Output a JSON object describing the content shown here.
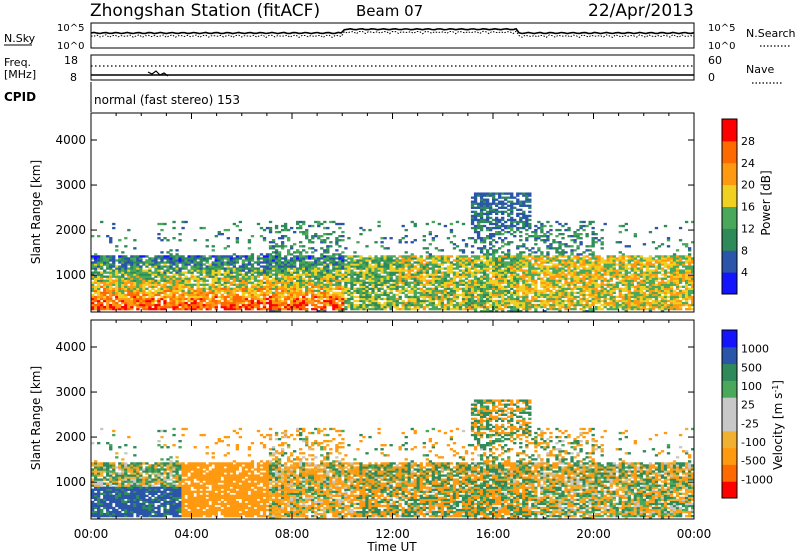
{
  "header": {
    "station": "Zhongshan Station (fitACF)",
    "beam": "Beam 07",
    "date": "22/Apr/2013"
  },
  "top_panels": {
    "nsky_label": "N.Sky",
    "nsky_ticks": [
      "10^5",
      "10^0"
    ],
    "nsearch_label": "N.Search",
    "nsearch_ticks": [
      "10^5",
      "10^0"
    ],
    "freq_label_1": "Freq.",
    "freq_label_2": "[MHz]",
    "freq_ticks": [
      "18",
      "8"
    ],
    "nave_label": "Nave",
    "nave_ticks": [
      "60",
      "0"
    ],
    "cpid_label": "CPID",
    "cpid_text": "normal (fast stereo) 153"
  },
  "colors": {
    "power_scale": [
      "#1414ff",
      "#2a55a8",
      "#2f8a5a",
      "#4aa85a",
      "#f0d020",
      "#ff9a10",
      "#ff6a00",
      "#ff0000"
    ],
    "velocity_scale": [
      "#ff0000",
      "#ff6a00",
      "#ff9a10",
      "#f0b030",
      "#c8c8c8",
      "#c8c8c8",
      "#4aa85a",
      "#2f8a5a",
      "#2a55a8",
      "#1414ff"
    ]
  },
  "chart_data": [
    {
      "type": "heatmap",
      "name": "power",
      "ylabel": "Slant Range [km]",
      "xlabel": "Time UT",
      "x_ticks": [
        "00:00",
        "04:00",
        "08:00",
        "12:00",
        "16:00",
        "20:00",
        "00:00"
      ],
      "y_ticks": [
        1000,
        2000,
        3000,
        4000
      ],
      "ylim": [
        180,
        4600
      ],
      "xlim_hours": [
        0,
        24
      ],
      "colorbar_label": "Power [dB]",
      "colorbar_ticks": [
        "4",
        "8",
        "12",
        "16",
        "20",
        "24",
        "28"
      ]
    },
    {
      "type": "heatmap",
      "name": "velocity",
      "ylabel": "Slant Range [km]",
      "xlabel": "Time UT",
      "x_ticks": [
        "00:00",
        "04:00",
        "08:00",
        "12:00",
        "16:00",
        "20:00",
        "00:00"
      ],
      "y_ticks": [
        1000,
        2000,
        3000,
        4000
      ],
      "ylim": [
        180,
        4600
      ],
      "xlim_hours": [
        0,
        24
      ],
      "colorbar_label": "Velocity [m s^-1]",
      "colorbar_ticks": [
        "1000",
        "500",
        "100",
        "25",
        "-25",
        "-100",
        "-500",
        "-1000"
      ]
    }
  ]
}
